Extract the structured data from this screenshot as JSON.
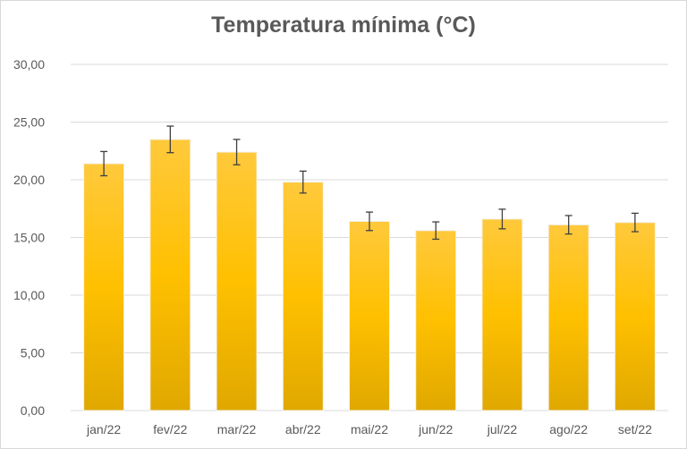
{
  "chart_data": {
    "type": "bar",
    "title": "Temperatura mínima (°C)",
    "xlabel": "",
    "ylabel": "",
    "categories": [
      "jan/22",
      "fev/22",
      "mar/22",
      "abr/22",
      "mai/22",
      "jun/22",
      "jul/22",
      "ago/22",
      "set/22"
    ],
    "values": [
      21.4,
      23.5,
      22.4,
      19.8,
      16.4,
      15.6,
      16.6,
      16.1,
      16.3
    ],
    "error": [
      1.05,
      1.15,
      1.1,
      0.95,
      0.8,
      0.75,
      0.85,
      0.8,
      0.8
    ],
    "ylim": [
      0,
      30
    ],
    "yticks": [
      "0,00",
      "5,00",
      "10,00",
      "15,00",
      "20,00",
      "25,00",
      "30,00"
    ],
    "grid": true,
    "legend": "none",
    "colors": {
      "bar_top": "#FFC93C",
      "bar_mid": "#FFC000",
      "bar_bottom": "#E0A800",
      "bar_edge": "#F2F2F2",
      "grid": "#D9D9D9",
      "error": "#404040",
      "text": "#595959"
    }
  }
}
